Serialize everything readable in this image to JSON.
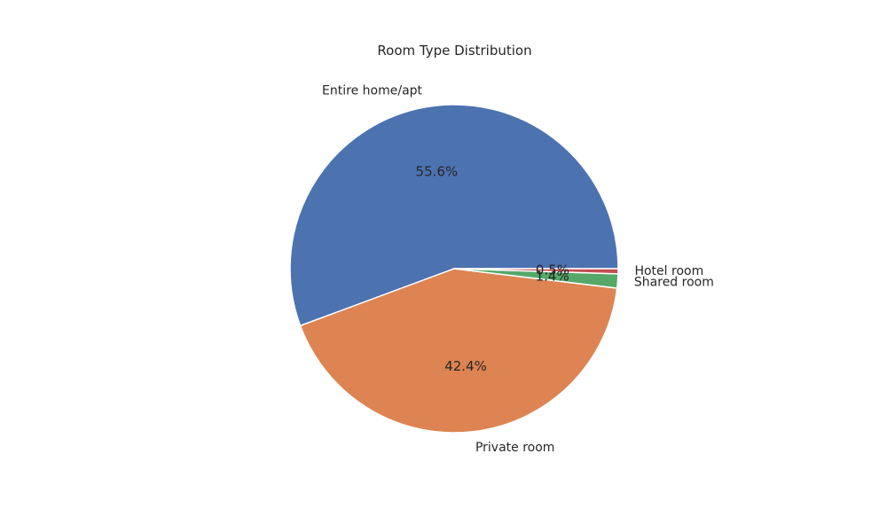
{
  "chart_data": {
    "type": "pie",
    "title": "Room Type Distribution",
    "start_angle_deg": 0,
    "direction": "counterclockwise",
    "slices": [
      {
        "label": "Entire home/apt",
        "value": 55.6,
        "pct_label": "55.6%",
        "color": "#4c72b0"
      },
      {
        "label": "Private room",
        "value": 42.4,
        "pct_label": "42.4%",
        "color": "#dd8452"
      },
      {
        "label": "Shared room",
        "value": 1.4,
        "pct_label": "1.4%",
        "color": "#55a868"
      },
      {
        "label": "Hotel room",
        "value": 0.5,
        "pct_label": "0.5%",
        "color": "#c44e52"
      }
    ]
  }
}
